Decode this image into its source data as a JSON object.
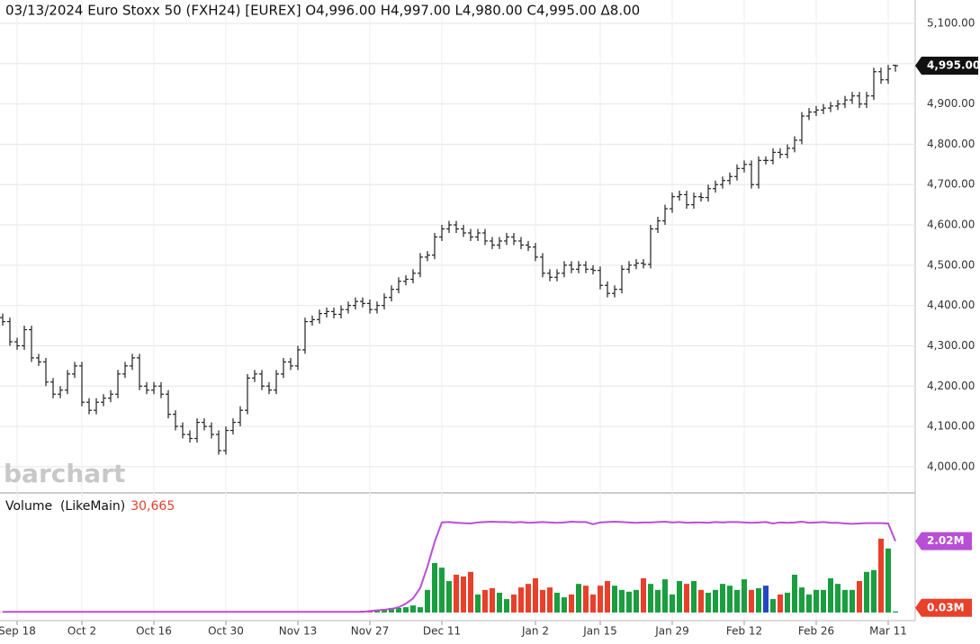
{
  "chart_data": {
    "type": "ohlc",
    "title": "03/13/2024 Euro Stoxx 50 (FXH24) [EUREX] O4,996.00 H4,997.00 L4,980.00 C4,995.00 Δ8.00",
    "watermark": "barchart",
    "categories": [
      null,
      null,
      "Sep 18",
      null,
      null,
      null,
      null,
      null,
      null,
      null,
      null,
      "Oct 2",
      null,
      null,
      null,
      null,
      null,
      null,
      null,
      null,
      null,
      "Oct 16",
      null,
      null,
      null,
      null,
      null,
      null,
      null,
      null,
      null,
      "Oct 30",
      null,
      null,
      null,
      null,
      null,
      null,
      null,
      null,
      null,
      "Nov 13",
      null,
      null,
      null,
      null,
      null,
      null,
      null,
      null,
      null,
      "Nov 27",
      null,
      null,
      null,
      null,
      null,
      null,
      null,
      null,
      null,
      "Dec 11",
      null,
      null,
      null,
      null,
      null,
      null,
      null,
      null,
      null,
      null,
      null,
      null,
      "Jan 2",
      null,
      null,
      null,
      null,
      null,
      null,
      null,
      null,
      "Jan 15",
      null,
      null,
      null,
      null,
      null,
      null,
      null,
      null,
      null,
      "Jan 29",
      null,
      null,
      null,
      null,
      null,
      null,
      null,
      null,
      null,
      "Feb 12",
      null,
      null,
      null,
      null,
      null,
      null,
      null,
      null,
      null,
      "Feb 26",
      null,
      null,
      null,
      null,
      null,
      null,
      null,
      null,
      null,
      "Mar 11",
      null
    ],
    "open": [
      4370,
      4360,
      4310,
      4300,
      4340,
      4270,
      4260,
      4210,
      4180,
      4190,
      4230,
      4250,
      4160,
      4140,
      4160,
      4170,
      4180,
      4230,
      4250,
      4270,
      4200,
      4190,
      4200,
      4180,
      4130,
      4100,
      4080,
      4070,
      4110,
      4100,
      4080,
      4040,
      4090,
      4110,
      4140,
      4220,
      4230,
      4200,
      4190,
      4230,
      4260,
      4250,
      4290,
      4360,
      4365,
      4380,
      4385,
      4378,
      4390,
      4400,
      4410,
      4405,
      4390,
      4400,
      4420,
      4440,
      4460,
      4465,
      4480,
      4520,
      4525,
      4570,
      4590,
      4600,
      4590,
      4580,
      4570,
      4580,
      4560,
      4550,
      4560,
      4570,
      4560,
      4550,
      4545,
      4520,
      4480,
      4470,
      4480,
      4500,
      4490,
      4500,
      4490,
      4487,
      4450,
      4430,
      4440,
      4490,
      4500,
      4505,
      4502,
      4590,
      4610,
      4640,
      4670,
      4675,
      4650,
      4670,
      4668,
      4690,
      4700,
      4710,
      4720,
      4740,
      4750,
      4700,
      4760,
      4760,
      4780,
      4775,
      4790,
      4810,
      4870,
      4880,
      4885,
      4890,
      4895,
      4900,
      4910,
      4920,
      4900,
      4920,
      4980,
      4960,
      4996
    ],
    "high": [
      4380,
      4370,
      4320,
      4350,
      4350,
      4280,
      4270,
      4220,
      4200,
      4240,
      4260,
      4260,
      4170,
      4170,
      4180,
      4190,
      4240,
      4260,
      4280,
      4280,
      4210,
      4210,
      4210,
      4190,
      4140,
      4110,
      4090,
      4120,
      4120,
      4110,
      4090,
      4100,
      4120,
      4150,
      4230,
      4240,
      4240,
      4210,
      4240,
      4270,
      4270,
      4300,
      4370,
      4375,
      4390,
      4395,
      4395,
      4400,
      4410,
      4420,
      4420,
      4415,
      4410,
      4430,
      4450,
      4470,
      4475,
      4490,
      4530,
      4535,
      4580,
      4600,
      4610,
      4610,
      4600,
      4590,
      4590,
      4590,
      4570,
      4570,
      4580,
      4580,
      4570,
      4560,
      4555,
      4530,
      4490,
      4490,
      4510,
      4510,
      4510,
      4510,
      4500,
      4497,
      4460,
      4450,
      4500,
      4510,
      4515,
      4515,
      4600,
      4620,
      4650,
      4680,
      4685,
      4685,
      4680,
      4680,
      4700,
      4710,
      4720,
      4730,
      4750,
      4760,
      4760,
      4770,
      4770,
      4790,
      4790,
      4800,
      4820,
      4880,
      4890,
      4895,
      4900,
      4905,
      4910,
      4920,
      4930,
      4930,
      4930,
      4990,
      4990,
      4997,
      4997
    ],
    "low": [
      4350,
      4300,
      4290,
      4290,
      4260,
      4250,
      4200,
      4170,
      4170,
      4180,
      4220,
      4150,
      4130,
      4130,
      4150,
      4160,
      4170,
      4220,
      4240,
      4190,
      4180,
      4180,
      4170,
      4120,
      4090,
      4070,
      4060,
      4060,
      4090,
      4070,
      4030,
      4030,
      4080,
      4100,
      4130,
      4210,
      4190,
      4180,
      4180,
      4220,
      4240,
      4240,
      4280,
      4350,
      4355,
      4370,
      4368,
      4368,
      4380,
      4390,
      4395,
      4380,
      4380,
      4390,
      4410,
      4430,
      4450,
      4455,
      4470,
      4510,
      4515,
      4560,
      4580,
      4580,
      4570,
      4560,
      4560,
      4550,
      4540,
      4540,
      4550,
      4550,
      4540,
      4535,
      4510,
      4470,
      4460,
      4460,
      4470,
      4480,
      4480,
      4480,
      4477,
      4440,
      4420,
      4420,
      4430,
      4480,
      4490,
      4492,
      4492,
      4580,
      4600,
      4630,
      4660,
      4640,
      4640,
      4658,
      4658,
      4680,
      4690,
      4700,
      4710,
      4730,
      4690,
      4690,
      4750,
      4750,
      4765,
      4765,
      4780,
      4800,
      4860,
      4870,
      4875,
      4880,
      4885,
      4890,
      4900,
      4890,
      4890,
      4910,
      4950,
      4950,
      4980
    ],
    "close": [
      4360,
      4310,
      4300,
      4340,
      4270,
      4260,
      4210,
      4180,
      4190,
      4230,
      4250,
      4160,
      4140,
      4160,
      4170,
      4180,
      4230,
      4250,
      4270,
      4200,
      4190,
      4200,
      4180,
      4130,
      4100,
      4080,
      4070,
      4110,
      4100,
      4080,
      4040,
      4090,
      4110,
      4140,
      4220,
      4230,
      4200,
      4190,
      4230,
      4260,
      4250,
      4290,
      4360,
      4365,
      4380,
      4385,
      4378,
      4390,
      4400,
      4410,
      4405,
      4390,
      4400,
      4420,
      4440,
      4460,
      4465,
      4480,
      4520,
      4525,
      4570,
      4590,
      4600,
      4590,
      4580,
      4570,
      4580,
      4560,
      4550,
      4560,
      4570,
      4560,
      4550,
      4545,
      4520,
      4480,
      4470,
      4480,
      4500,
      4490,
      4500,
      4490,
      4487,
      4450,
      4430,
      4440,
      4490,
      4500,
      4505,
      4502,
      4590,
      4610,
      4640,
      4670,
      4675,
      4650,
      4670,
      4668,
      4690,
      4700,
      4710,
      4720,
      4740,
      4750,
      4700,
      4760,
      4760,
      4780,
      4775,
      4790,
      4810,
      4870,
      4880,
      4885,
      4890,
      4895,
      4900,
      4910,
      4920,
      4900,
      4920,
      4980,
      4960,
      4987,
      4995
    ],
    "last_label": "4,995.00",
    "bar_color": "#222222",
    "ylim": [
      3935,
      5158
    ],
    "yticks": [
      {
        "value": 4000,
        "label": "4,000.00"
      },
      {
        "value": 4100,
        "label": "4,100.00"
      },
      {
        "value": 4200,
        "label": "4,200.00"
      },
      {
        "value": 4300,
        "label": "4,300.00"
      },
      {
        "value": 4400,
        "label": "4,400.00"
      },
      {
        "value": 4500,
        "label": "4,500.00"
      },
      {
        "value": 4600,
        "label": "4,600.00"
      },
      {
        "value": 4700,
        "label": "4,700.00"
      },
      {
        "value": 4800,
        "label": "4,800.00"
      },
      {
        "value": 4900,
        "label": "4,900.00"
      },
      {
        "value": 5000,
        "label": "5,000.00"
      },
      {
        "value": 5100,
        "label": "5,100.00"
      }
    ],
    "grid": true,
    "volume": {
      "title": "Volume  (LikeMain)",
      "last_value_label": "30,665",
      "last_label": "0.03M",
      "up_color": "#1a9e3f",
      "down_color": "#e8402a",
      "flat_color": "#2546c4",
      "ylim": [
        0,
        2800000
      ],
      "values": [
        10000,
        10000,
        10000,
        10000,
        10000,
        10000,
        10000,
        10000,
        10000,
        10000,
        10000,
        10000,
        10000,
        10000,
        10000,
        10000,
        10000,
        10000,
        10000,
        10000,
        10000,
        10000,
        10000,
        10000,
        10000,
        10000,
        10000,
        10000,
        10000,
        10000,
        10000,
        10000,
        10000,
        10000,
        10000,
        10000,
        10000,
        10000,
        10000,
        10000,
        10000,
        10000,
        10000,
        10000,
        10000,
        10000,
        10000,
        10000,
        10000,
        10000,
        50000,
        30000,
        80000,
        100000,
        130000,
        130000,
        150000,
        200000,
        150000,
        640000,
        1400000,
        1270000,
        890000,
        1070000,
        1020000,
        1150000,
        510000,
        640000,
        690000,
        560000,
        380000,
        510000,
        710000,
        810000,
        970000,
        640000,
        710000,
        560000,
        430000,
        510000,
        810000,
        760000,
        510000,
        760000,
        890000,
        760000,
        640000,
        590000,
        640000,
        970000,
        810000,
        640000,
        940000,
        510000,
        890000,
        810000,
        890000,
        640000,
        560000,
        640000,
        810000,
        760000,
        640000,
        940000,
        640000,
        690000,
        760000,
        380000,
        510000,
        560000,
        1070000,
        710000,
        510000,
        640000,
        640000,
        970000,
        810000,
        640000,
        640000,
        890000,
        1150000,
        1200000,
        2090000,
        1810000,
        30665
      ]
    },
    "volume_average": {
      "color": "#b94fd6",
      "last_label": "2.02M",
      "values": [
        20000,
        20000,
        20000,
        20000,
        20000,
        20000,
        20000,
        20000,
        20000,
        20000,
        20000,
        20000,
        20000,
        20000,
        20000,
        20000,
        20000,
        20000,
        20000,
        20000,
        20000,
        20000,
        20000,
        20000,
        20000,
        20000,
        20000,
        20000,
        20000,
        20000,
        20000,
        20000,
        20000,
        20000,
        20000,
        20000,
        20000,
        20000,
        20000,
        20000,
        20000,
        20000,
        20000,
        20000,
        20000,
        20000,
        20000,
        20000,
        20000,
        20000,
        20000,
        40000,
        60000,
        80000,
        100000,
        150000,
        250000,
        400000,
        700000,
        1300000,
        2000000,
        2550000,
        2560000,
        2540000,
        2530000,
        2520000,
        2550000,
        2560000,
        2570000,
        2560000,
        2560000,
        2550000,
        2560000,
        2540000,
        2550000,
        2560000,
        2550000,
        2540000,
        2550000,
        2570000,
        2560000,
        2560000,
        2500000,
        2550000,
        2560000,
        2570000,
        2560000,
        2550000,
        2540000,
        2550000,
        2550000,
        2560000,
        2570000,
        2550000,
        2560000,
        2540000,
        2550000,
        2550000,
        2540000,
        2560000,
        2550000,
        2560000,
        2560000,
        2550000,
        2540000,
        2550000,
        2560000,
        2520000,
        2550000,
        2540000,
        2550000,
        2570000,
        2540000,
        2550000,
        2560000,
        2540000,
        2540000,
        2520000,
        2510000,
        2520000,
        2530000,
        2530000,
        2530000,
        2520000,
        2020000
      ]
    }
  }
}
